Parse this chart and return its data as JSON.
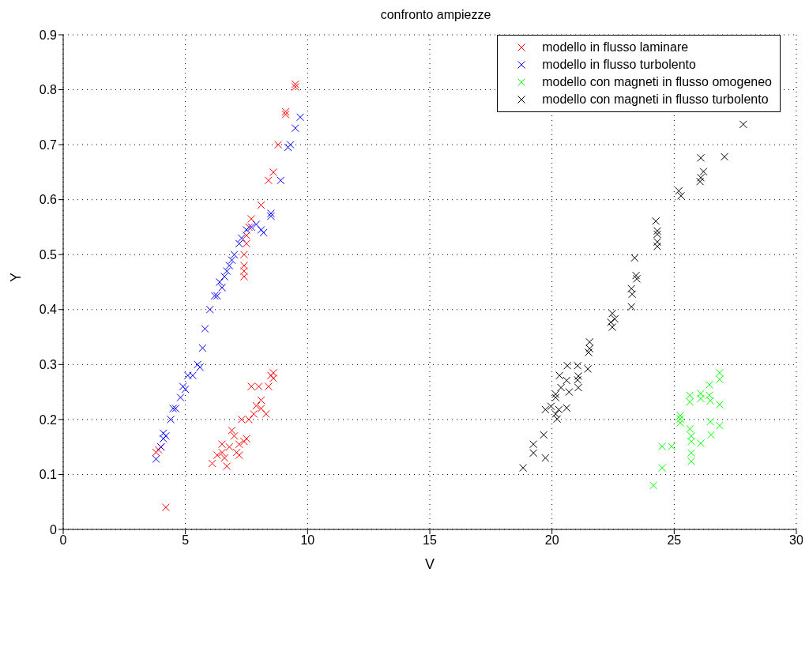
{
  "chart_data": {
    "type": "scatter",
    "title": "confronto ampiezze",
    "xlabel": "V",
    "ylabel": "Y",
    "xlim": [
      0,
      30
    ],
    "xticks": [
      0,
      5,
      10,
      15,
      20,
      25,
      30
    ],
    "ylim": [
      0,
      0.9
    ],
    "yticks": [
      0,
      0.1,
      0.2,
      0.3,
      0.4,
      0.5,
      0.6,
      0.7,
      0.8,
      0.9
    ],
    "grid": true,
    "legend": "top right",
    "marker": "cross",
    "series": [
      {
        "name": "modello in flusso laminare",
        "color": "#ff0000",
        "x": [
          3.8,
          3.9,
          4.0,
          4.2,
          6.1,
          6.3,
          6.5,
          6.5,
          6.6,
          6.7,
          6.8,
          6.9,
          7.0,
          7.1,
          7.2,
          7.2,
          7.3,
          7.4,
          7.5,
          7.6,
          7.7,
          7.8,
          7.9,
          8.0,
          8.1,
          8.1,
          8.3,
          8.4,
          8.5,
          8.6,
          8.6,
          7.4,
          7.4,
          7.4,
          7.4,
          7.5,
          7.5,
          7.6,
          7.7,
          8.1,
          8.4,
          8.6,
          8.8,
          9.1,
          9.1,
          9.5,
          9.5
        ],
        "values": [
          0.14,
          0.145,
          0.15,
          0.04,
          0.12,
          0.135,
          0.14,
          0.155,
          0.13,
          0.115,
          0.15,
          0.18,
          0.17,
          0.14,
          0.135,
          0.155,
          0.2,
          0.16,
          0.165,
          0.2,
          0.26,
          0.21,
          0.225,
          0.26,
          0.22,
          0.235,
          0.21,
          0.26,
          0.28,
          0.275,
          0.285,
          0.46,
          0.47,
          0.48,
          0.5,
          0.52,
          0.535,
          0.55,
          0.565,
          0.59,
          0.635,
          0.65,
          0.7,
          0.755,
          0.76,
          0.805,
          0.81
        ]
      },
      {
        "name": "modello in flusso turbolento",
        "color": "#0000ff",
        "x": [
          3.8,
          4.0,
          4.1,
          4.1,
          4.2,
          4.4,
          4.5,
          4.6,
          4.8,
          4.9,
          5.0,
          5.1,
          5.3,
          5.5,
          5.6,
          5.7,
          5.8,
          6.0,
          6.2,
          6.3,
          6.4,
          6.5,
          6.6,
          6.7,
          6.8,
          6.9,
          7.0,
          7.2,
          7.3,
          7.5,
          7.7,
          7.9,
          8.1,
          8.2,
          8.5,
          8.5,
          8.9,
          9.2,
          9.3,
          9.5,
          9.7
        ],
        "values": [
          0.128,
          0.15,
          0.165,
          0.175,
          0.17,
          0.2,
          0.22,
          0.22,
          0.24,
          0.26,
          0.255,
          0.28,
          0.28,
          0.3,
          0.295,
          0.33,
          0.365,
          0.4,
          0.425,
          0.425,
          0.45,
          0.44,
          0.46,
          0.47,
          0.48,
          0.49,
          0.5,
          0.52,
          0.53,
          0.545,
          0.55,
          0.555,
          0.545,
          0.54,
          0.57,
          0.575,
          0.635,
          0.695,
          0.7,
          0.73,
          0.75
        ]
      },
      {
        "name": "modello con magneti in flusso omogeneo",
        "color": "#00ff00",
        "x": [
          26.86,
          26.86,
          26.44,
          25.64,
          25.64,
          26.09,
          26.09,
          26.44,
          26.48,
          26.86,
          25.25,
          25.25,
          25.25,
          26.48,
          26.86,
          25.64,
          25.7,
          25.7,
          26.09,
          26.51,
          24.51,
          24.9,
          25.7,
          25.7,
          24.51,
          24.15
        ],
        "values": [
          0.285,
          0.273,
          0.263,
          0.244,
          0.232,
          0.247,
          0.238,
          0.244,
          0.234,
          0.227,
          0.207,
          0.201,
          0.194,
          0.196,
          0.189,
          0.183,
          0.17,
          0.16,
          0.157,
          0.172,
          0.151,
          0.151,
          0.139,
          0.124,
          0.112,
          0.08
        ]
      },
      {
        "name": "modello con magneti in flusso turbolento",
        "color": "#000000",
        "x": [
          27.83,
          26.09,
          27.06,
          26.2,
          26.09,
          26.06,
          25.19,
          25.28,
          24.25,
          24.31,
          24.31,
          24.31,
          24.31,
          23.38,
          23.44,
          23.47,
          23.25,
          23.28,
          23.25,
          22.47,
          22.57,
          22.41,
          22.47,
          21.54,
          21.54,
          21.5,
          20.63,
          21.05,
          21.47,
          20.31,
          21.08,
          21.05,
          20.6,
          21.08,
          20.37,
          20.7,
          20.15,
          20.15,
          19.73,
          19.96,
          20.28,
          20.6,
          20.15,
          20.21,
          19.66,
          19.24,
          19.24,
          19.73,
          18.82
        ],
        "values": [
          0.737,
          0.676,
          0.678,
          0.651,
          0.64,
          0.633,
          0.616,
          0.607,
          0.561,
          0.543,
          0.537,
          0.523,
          0.515,
          0.494,
          0.462,
          0.456,
          0.438,
          0.428,
          0.405,
          0.393,
          0.383,
          0.377,
          0.368,
          0.341,
          0.329,
          0.322,
          0.298,
          0.298,
          0.292,
          0.28,
          0.279,
          0.272,
          0.271,
          0.258,
          0.258,
          0.25,
          0.246,
          0.24,
          0.218,
          0.224,
          0.218,
          0.221,
          0.21,
          0.201,
          0.172,
          0.155,
          0.139,
          0.13,
          0.112
        ]
      }
    ]
  }
}
